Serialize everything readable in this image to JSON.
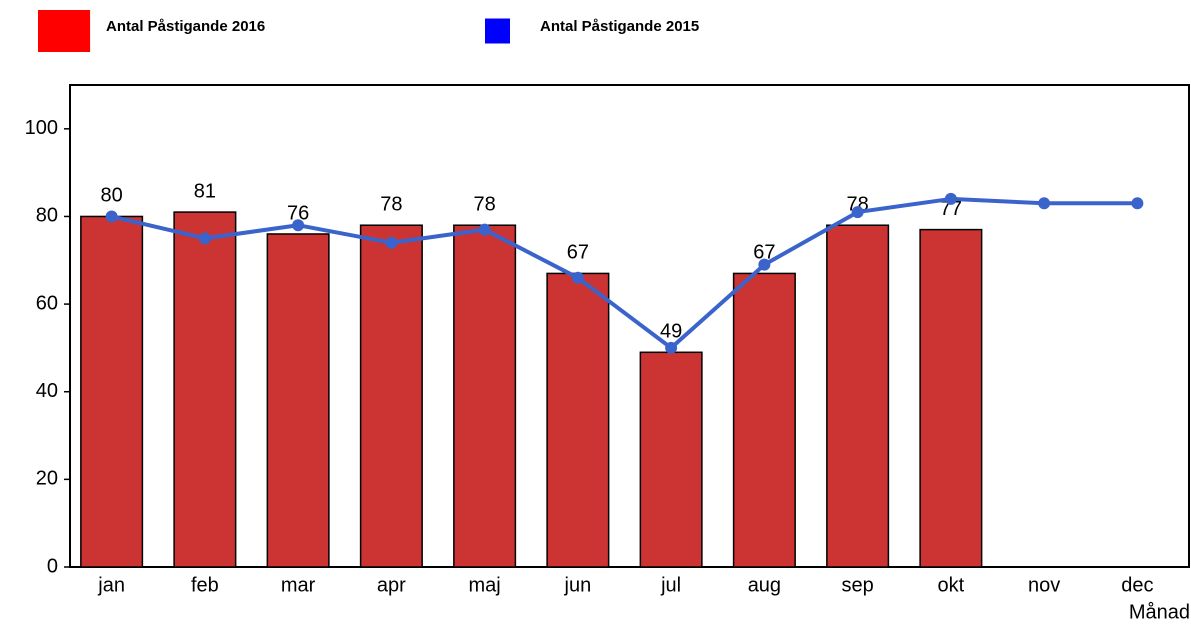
{
  "chart_data": {
    "type": "bar",
    "x_label": "Månad",
    "categories": [
      "jan",
      "feb",
      "mar",
      "apr",
      "maj",
      "jun",
      "jul",
      "aug",
      "sep",
      "okt",
      "nov",
      "dec"
    ],
    "series": [
      {
        "name": "Antal Påstigande 2016",
        "type": "bar",
        "color": "#cc3333",
        "legend_color": "#ff0000",
        "values": [
          80,
          81,
          76,
          78,
          78,
          67,
          49,
          67,
          78,
          77,
          null,
          null
        ]
      },
      {
        "name": "Antal Påstigande 2015",
        "type": "line",
        "color": "#3a64cc",
        "legend_color": "#0000ff",
        "values": [
          80,
          75,
          78,
          74,
          77,
          66,
          50,
          69,
          81,
          84,
          83,
          83
        ]
      }
    ],
    "ylim": [
      0,
      110
    ],
    "yticks": [
      0,
      20,
      40,
      60,
      80,
      100
    ],
    "grid": false
  }
}
